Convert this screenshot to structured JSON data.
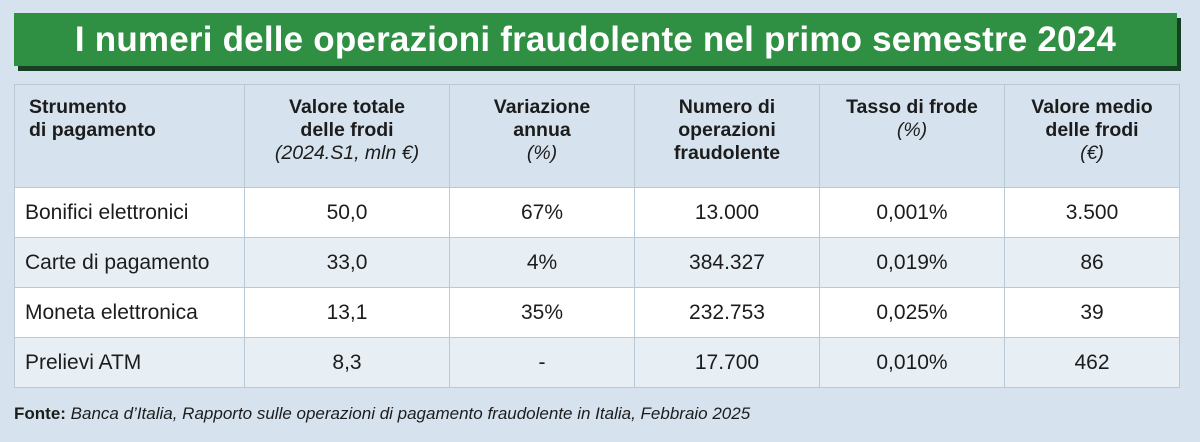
{
  "title": "I numeri delle operazioni fraudolente nel primo semestre 2024",
  "colors": {
    "banner": "#2f8f43",
    "banner_shadow": "#173f23",
    "background": "#d6e3ee",
    "row_alt": "#e7eef4"
  },
  "chart_data": {
    "type": "table",
    "title": "I numeri delle operazioni fraudolente nel primo semestre 2024",
    "columns": [
      {
        "lines": [
          "Strumento",
          "di pagamento"
        ],
        "unit": ""
      },
      {
        "lines": [
          "Valore totale",
          "delle frodi"
        ],
        "unit": "(2024.S1, mln €)"
      },
      {
        "lines": [
          "Variazione",
          "annua"
        ],
        "unit": "(%)"
      },
      {
        "lines": [
          "Numero di",
          "operazioni",
          "fraudolente"
        ],
        "unit": ""
      },
      {
        "lines": [
          "Tasso di frode"
        ],
        "unit": "(%)"
      },
      {
        "lines": [
          "Valore medio",
          "delle frodi"
        ],
        "unit": "(€)"
      }
    ],
    "rows": [
      [
        "Bonifici elettronici",
        "50,0",
        "67%",
        "13.000",
        "0,001%",
        "3.500"
      ],
      [
        "Carte di pagamento",
        "33,0",
        "4%",
        "384.327",
        "0,019%",
        "86"
      ],
      [
        "Moneta elettronica",
        "13,1",
        "35%",
        "232.753",
        "0,025%",
        "39"
      ],
      [
        "Prelievi ATM",
        "8,3",
        "-",
        "17.700",
        "0,010%",
        "462"
      ]
    ]
  },
  "footer": {
    "label": "Fonte:",
    "text": "Banca d’Italia, Rapporto sulle operazioni di pagamento fraudolente in Italia, Febbraio 2025"
  }
}
